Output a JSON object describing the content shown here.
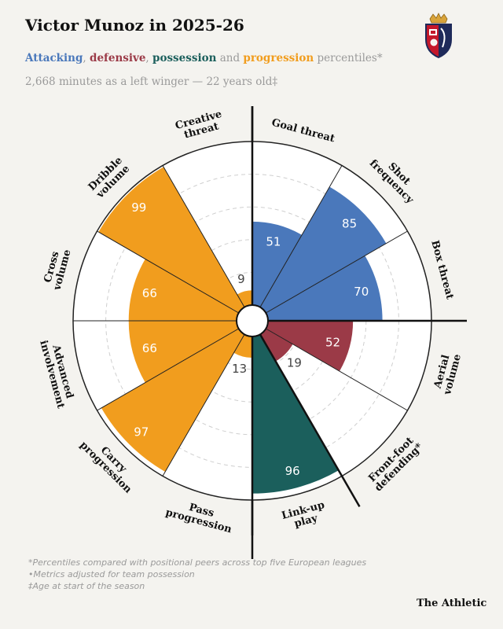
{
  "header": {
    "title": "Victor Munoz in 2025-26",
    "subtitle": {
      "attacking": "Attacking",
      "sep1": ", ",
      "defensive": "defensive",
      "sep2": ", ",
      "possession": "possession",
      "and": " and ",
      "progression": "progression",
      "tail": " percentiles*"
    },
    "meta": "2,668 minutes as a left winger — 22 years old‡"
  },
  "colors": {
    "attacking": "#4a78bb",
    "defensive": "#9b3a47",
    "possession": "#1b5f5c",
    "progression": "#f19d1e",
    "background": "#f4f3ef"
  },
  "crest": {
    "icon": "osasuna-crest"
  },
  "chart_data": {
    "type": "polar-bar",
    "range": [
      0,
      100
    ],
    "metrics": [
      {
        "name": "Goal threat",
        "label_lines": [
          "Goal threat"
        ],
        "value": 51,
        "group": "attacking"
      },
      {
        "name": "Shot frequency",
        "label_lines": [
          "Shot",
          "frequency"
        ],
        "value": 85,
        "group": "attacking"
      },
      {
        "name": "Box threat",
        "label_lines": [
          "Box threat"
        ],
        "value": 70,
        "group": "attacking"
      },
      {
        "name": "Aerial volume",
        "label_lines": [
          "Aerial",
          "volume"
        ],
        "value": 52,
        "group": "defensive"
      },
      {
        "name": "Front-foot defending*",
        "label_lines": [
          "Front-foot",
          "defending*"
        ],
        "value": 19,
        "group": "defensive"
      },
      {
        "name": "Link-up play",
        "label_lines": [
          "Link-up",
          "play"
        ],
        "value": 96,
        "group": "possession"
      },
      {
        "name": "Pass progression",
        "label_lines": [
          "Pass",
          "progression"
        ],
        "value": 13,
        "group": "progression"
      },
      {
        "name": "Carry progression",
        "label_lines": [
          "Carry",
          "progression"
        ],
        "value": 97,
        "group": "progression"
      },
      {
        "name": "Advanced involvement",
        "label_lines": [
          "Advanced",
          "involvement"
        ],
        "value": 66,
        "group": "progression"
      },
      {
        "name": "Cross volume",
        "label_lines": [
          "Cross",
          "volume"
        ],
        "value": 66,
        "group": "progression"
      },
      {
        "name": "Dribble volume",
        "label_lines": [
          "Dribble",
          "volume"
        ],
        "value": 99,
        "group": "progression"
      },
      {
        "name": "Creative threat",
        "label_lines": [
          "Creative",
          "threat"
        ],
        "value": 9,
        "group": "progression"
      }
    ],
    "gridlines": [
      20,
      40,
      60,
      80
    ]
  },
  "footnotes": [
    "*Percentiles compared with positional peers across top five European leagues",
    "•Metrics adjusted for team possession",
    "‡Age at start of the season"
  ],
  "brand": "The Athletic"
}
